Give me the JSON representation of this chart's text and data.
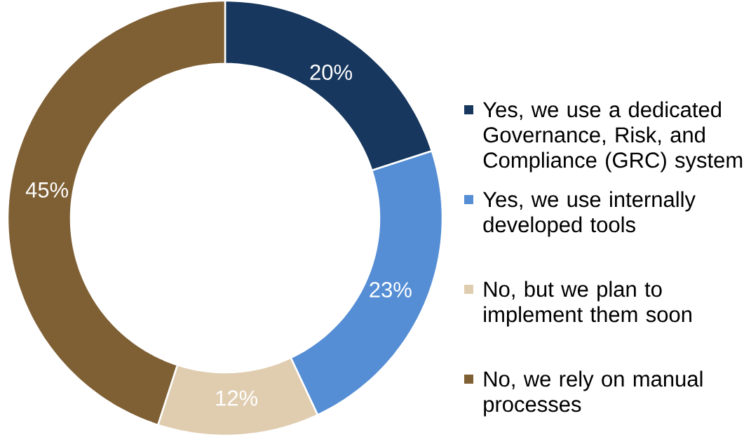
{
  "chart_data": {
    "type": "donut",
    "categories": [
      "Yes, we use a dedicated Governance, Risk, and Compliance (GRC) system",
      "Yes, we use internally developed tools",
      "No, but we plan to implement them soon",
      "No, we rely on manual processes"
    ],
    "values": [
      20,
      23,
      12,
      45
    ],
    "value_labels": [
      "20%",
      "23%",
      "12%",
      "45%"
    ],
    "colors": [
      "#17375e",
      "#558ed5",
      "#e0cdb0",
      "#7f6035"
    ],
    "legend": "right"
  }
}
